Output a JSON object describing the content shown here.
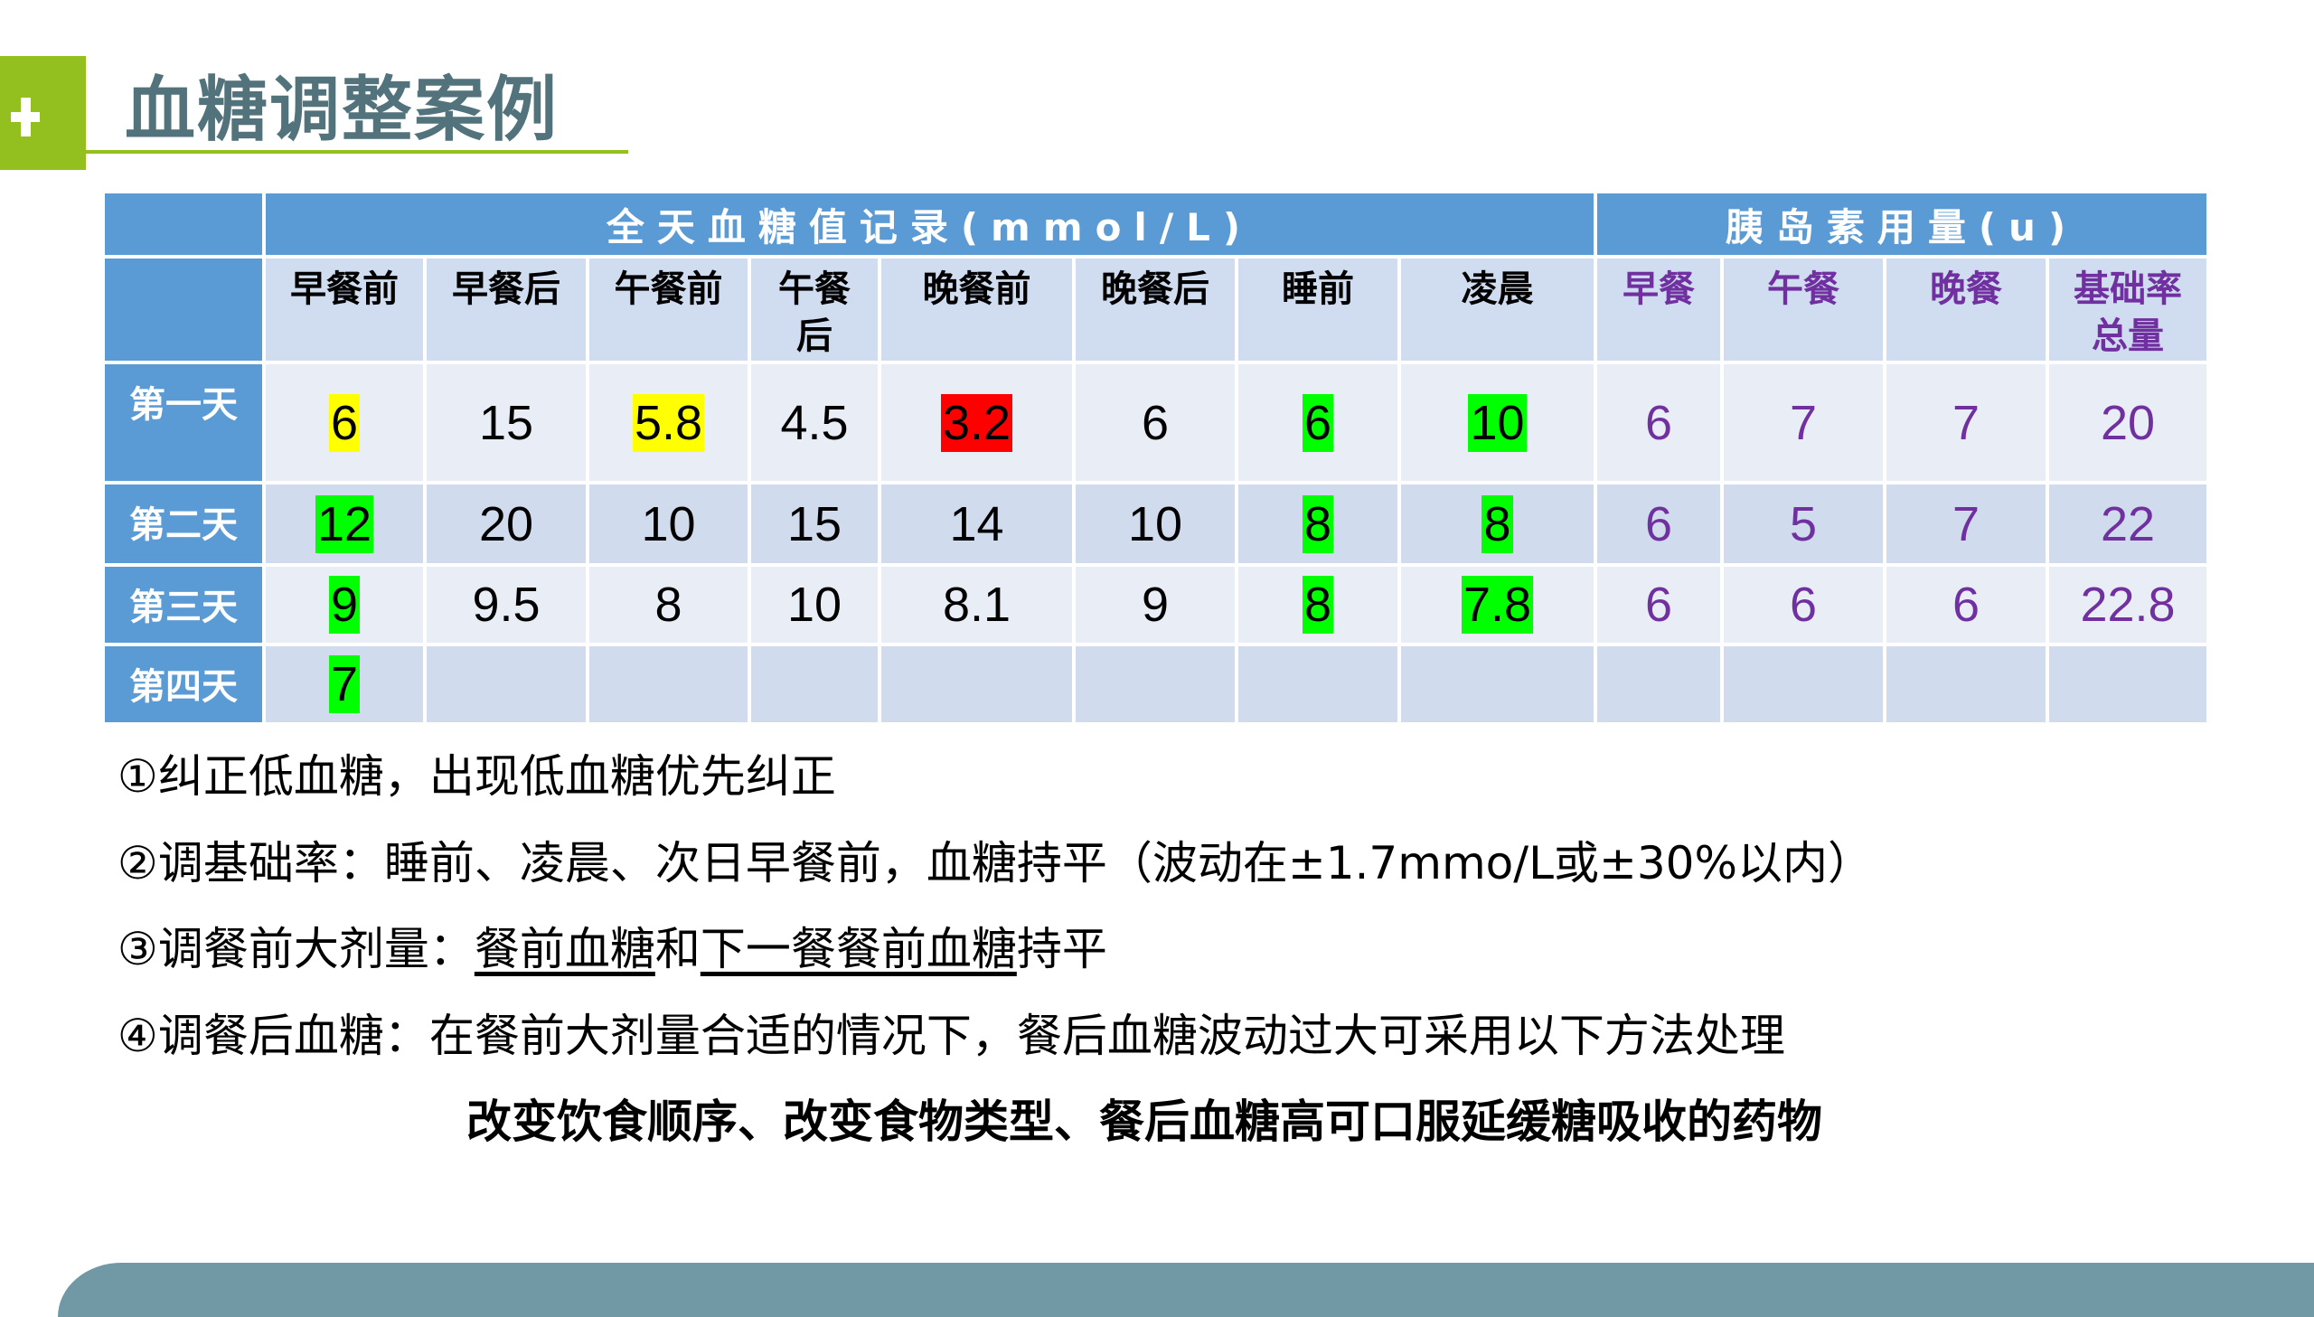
{
  "title": "血糖调整案例",
  "table": {
    "group_headers": [
      "全天血糖值记录(mmol/L)",
      "胰岛素用量(u)"
    ],
    "columns": [
      "早餐前",
      "早餐后",
      "午餐前",
      "午餐后",
      "晚餐前",
      "晚餐后",
      "睡前",
      "凌晨",
      "早餐",
      "午餐",
      "晚餐",
      "基础率总量"
    ],
    "rows": [
      {
        "label": "第一天",
        "values": [
          "6",
          "15",
          "5.8",
          "4.5",
          "3.2",
          "6",
          "6",
          "10",
          "6",
          "7",
          "7",
          "20"
        ],
        "highlights": [
          "#ffff00",
          null,
          "#ffff00",
          null,
          "#ff0000",
          null,
          "#00ff00",
          "#00ff00",
          null,
          null,
          null,
          null
        ]
      },
      {
        "label": "第二天",
        "values": [
          "12",
          "20",
          "10",
          "15",
          "14",
          "10",
          "8",
          "8",
          "6",
          "5",
          "7",
          "22"
        ],
        "highlights": [
          "#00ff00",
          null,
          null,
          null,
          null,
          null,
          "#00ff00",
          "#00ff00",
          null,
          null,
          null,
          null
        ]
      },
      {
        "label": "第三天",
        "values": [
          "9",
          "9.5",
          "8",
          "10",
          "8.1",
          "9",
          "8",
          "7.8",
          "6",
          "6",
          "6",
          "22.8"
        ],
        "highlights": [
          "#00ff00",
          null,
          null,
          null,
          null,
          null,
          "#00ff00",
          "#00ff00",
          null,
          null,
          null,
          null
        ]
      },
      {
        "label": "第四天",
        "values": [
          "7",
          "",
          "",
          "",
          "",
          "",
          "",
          "",
          "",
          "",
          "",
          ""
        ],
        "highlights": [
          "#00ff00",
          null,
          null,
          null,
          null,
          null,
          null,
          null,
          null,
          null,
          null,
          null
        ]
      }
    ]
  },
  "notes": {
    "n1": "①纠正低血糖，出现低血糖优先纠正",
    "n2": "②调基础率：睡前、凌晨、次日早餐前，血糖持平（波动在±1.7mmo/L或±30%以内）",
    "n3_prefix": "③调餐前大剂量：",
    "n3_u1": "餐前血糖",
    "n3_mid": "和",
    "n3_u2": "下一餐餐前血糖",
    "n3_suffix": "持平",
    "n4": "④调餐后血糖：在餐前大剂量合适的情况下，餐后血糖波动过大可采用以下方法处理",
    "methods": "改变饮食顺序、改变食物类型、餐后血糖高可口服延缓糖吸收的药物"
  },
  "colors": {
    "accent_green": "#93c01f",
    "header_blue": "#5b9bd5",
    "insulin_purple": "#7030a0",
    "title": "#52727c",
    "footer_bar": "#7198a5"
  }
}
